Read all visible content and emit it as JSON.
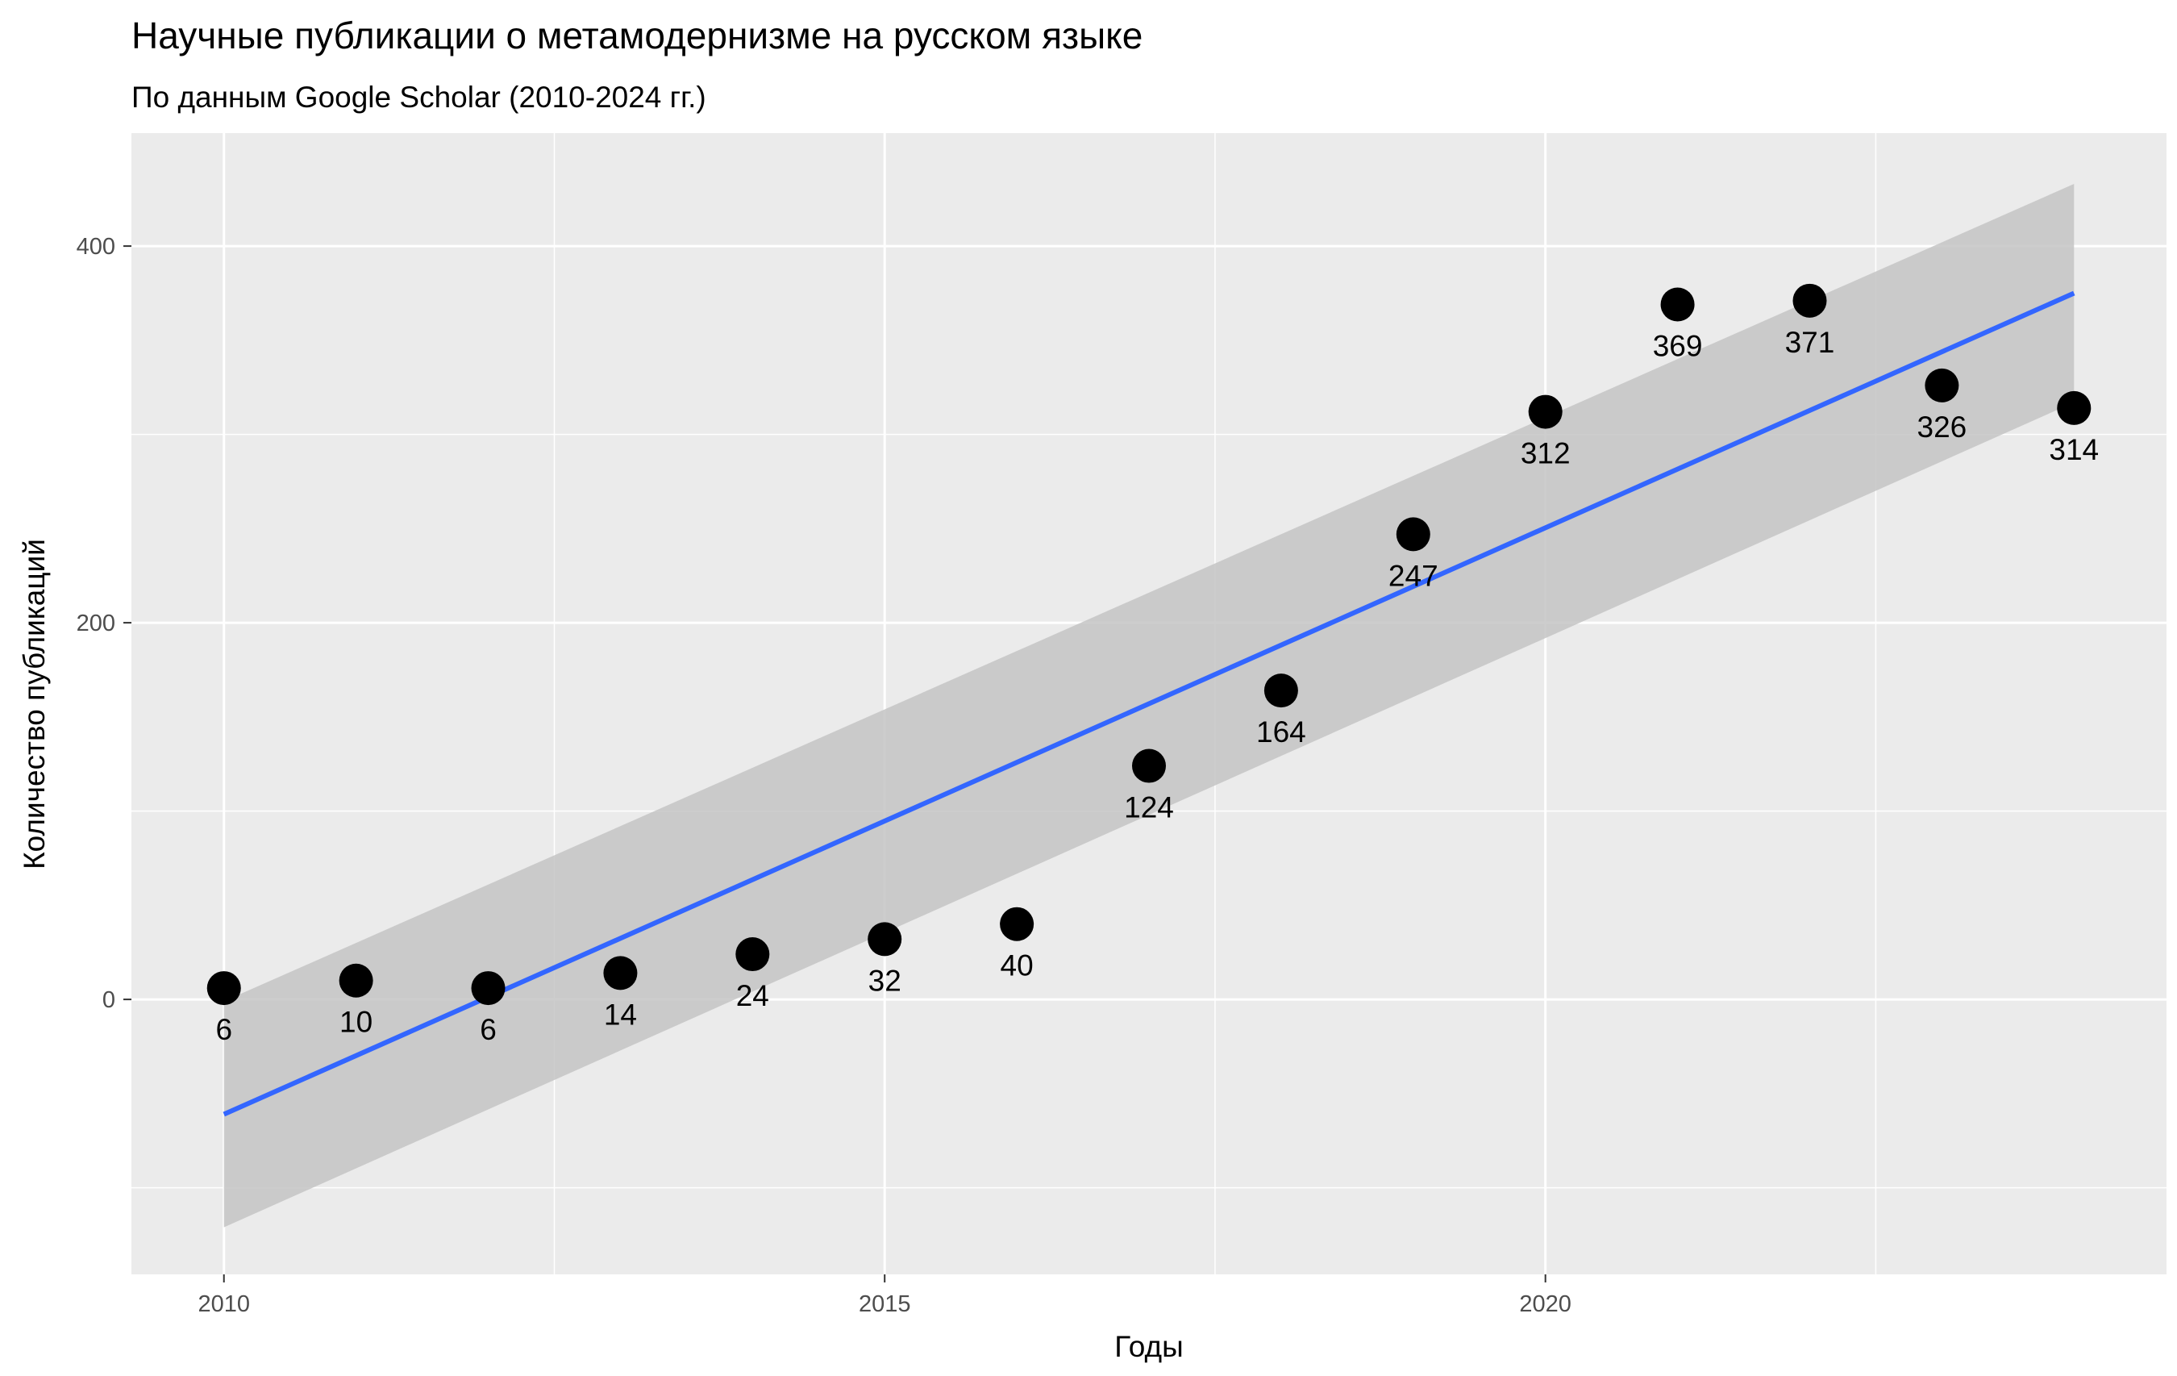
{
  "chart_data": {
    "type": "scatter",
    "title": "Научные публикации о метамодернизме на русском языке",
    "subtitle": "По данным Google Scholar (2010-2024 гг.)",
    "xlabel": "Годы",
    "ylabel": "Количество публикаций",
    "xlim": [
      2009.3,
      2024.7
    ],
    "ylim": [
      -146,
      460
    ],
    "x_ticks": [
      2010,
      2015,
      2020
    ],
    "y_ticks": [
      0,
      200,
      400
    ],
    "x_tick_labels": [
      "2010",
      "2015",
      "2020"
    ],
    "y_tick_labels": [
      "0",
      "200",
      "400"
    ],
    "grid": true,
    "points": [
      {
        "x": 2010,
        "y": 6,
        "label": "6"
      },
      {
        "x": 2011,
        "y": 10,
        "label": "10"
      },
      {
        "x": 2012,
        "y": 6,
        "label": "6"
      },
      {
        "x": 2013,
        "y": 14,
        "label": "14"
      },
      {
        "x": 2014,
        "y": 24,
        "label": "24"
      },
      {
        "x": 2015,
        "y": 32,
        "label": "32"
      },
      {
        "x": 2016,
        "y": 40,
        "label": "40"
      },
      {
        "x": 2017,
        "y": 124,
        "label": "124"
      },
      {
        "x": 2018,
        "y": 164,
        "label": "164"
      },
      {
        "x": 2019,
        "y": 247,
        "label": "247"
      },
      {
        "x": 2020,
        "y": 312,
        "label": "312"
      },
      {
        "x": 2021,
        "y": 369,
        "label": "369"
      },
      {
        "x": 2022,
        "y": 371,
        "label": "371"
      },
      {
        "x": 2023,
        "y": 326,
        "label": "326"
      },
      {
        "x": 2024,
        "y": 314,
        "label": "314"
      }
    ],
    "trend": {
      "method": "linear regression",
      "x": [
        2010,
        2024
      ],
      "y": [
        -61,
        375
      ],
      "ci_upper": [
        -1,
        433
      ],
      "ci_lower": [
        -121,
        317
      ]
    },
    "colors": {
      "panel": "#ebebeb",
      "grid": "#ffffff",
      "point": "#000000",
      "trend_line": "#3366ff",
      "confidence_band": "#c4c4c4"
    }
  }
}
